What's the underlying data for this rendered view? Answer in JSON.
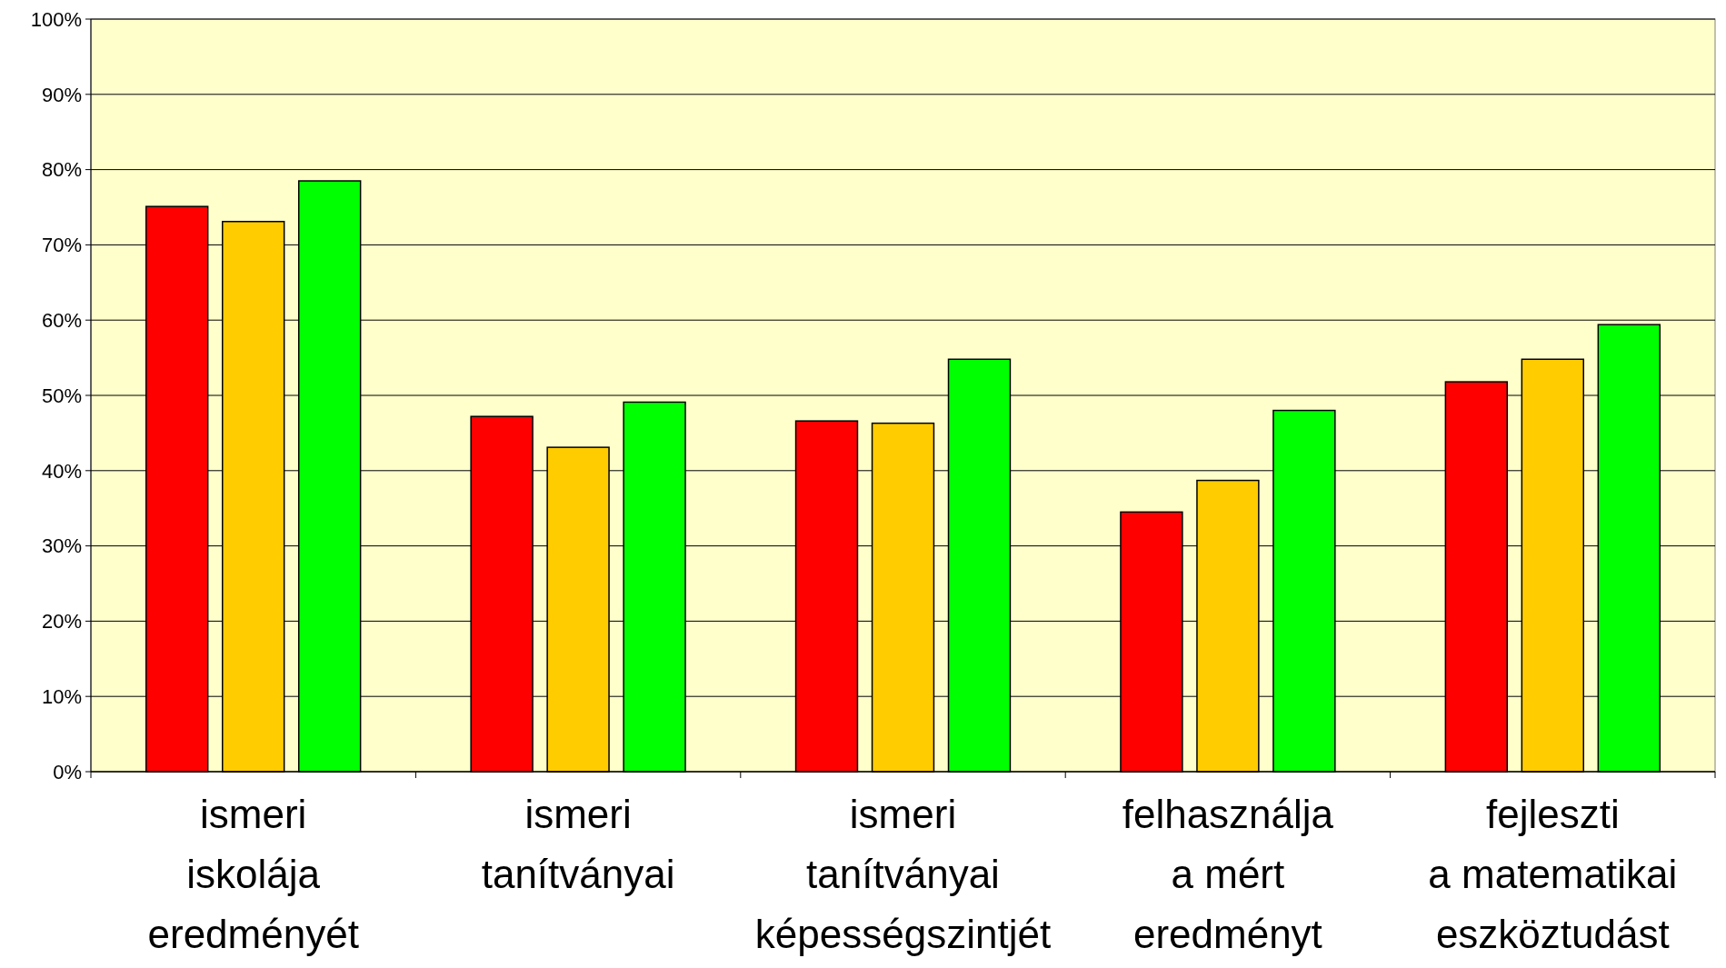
{
  "chart_data": {
    "type": "bar",
    "categories": [
      "ismeri\niskolája\neredményét",
      "ismeri\ntanítványai",
      "ismeri\ntanítványai\nképességszintjét",
      "felhasználja\na mért\neredményt",
      "fejleszti\na matematikai\neszköztudást"
    ],
    "series": [
      {
        "color": "#ff0000",
        "values": [
          75.1,
          47.2,
          46.6,
          34.5,
          51.8
        ]
      },
      {
        "color": "#ffcc00",
        "values": [
          73.1,
          43.1,
          46.3,
          38.7,
          54.8
        ]
      },
      {
        "color": "#00ff00",
        "values": [
          78.5,
          49.1,
          54.8,
          48.0,
          59.4
        ]
      }
    ],
    "ylim": [
      0,
      100
    ],
    "yticks": [
      {
        "value": 0,
        "label": "0%"
      },
      {
        "value": 10,
        "label": "10%"
      },
      {
        "value": 20,
        "label": "20%"
      },
      {
        "value": 30,
        "label": "30%"
      },
      {
        "value": 40,
        "label": "40%"
      },
      {
        "value": 50,
        "label": "50%"
      },
      {
        "value": 60,
        "label": "60%"
      },
      {
        "value": 70,
        "label": "70%"
      },
      {
        "value": 80,
        "label": "80%"
      },
      {
        "value": 90,
        "label": "90%"
      },
      {
        "value": 100,
        "label": "100%"
      }
    ],
    "grid": "y"
  }
}
